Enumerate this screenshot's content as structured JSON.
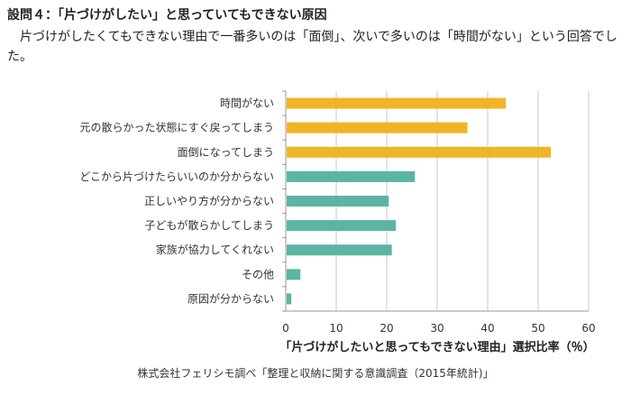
{
  "header": {
    "title": "設問４：「片づけがしたい」と思っていてもできない原因",
    "description": "片づけがしたくてもできない理由で一番多いのは「面倒」、次いで多いのは「時間がない」という回答でした。"
  },
  "chart_data": {
    "type": "bar",
    "orientation": "horizontal",
    "categories": [
      "時間がない",
      "元の散らかった状態にすぐ戻ってしまう",
      "面倒になってしまう",
      "どこから片づけたらいいのか分からない",
      "正しいやり方が分からない",
      "子どもが散らかしてしまう",
      "家族が協力してくれない",
      "その他",
      "原因が分からない"
    ],
    "values": [
      43.6,
      36.0,
      52.5,
      25.6,
      20.4,
      21.8,
      21.0,
      2.9,
      1.1
    ],
    "colors": [
      "#F0B429",
      "#F0B429",
      "#F0B429",
      "#5BB5A2",
      "#5BB5A2",
      "#5BB5A2",
      "#5BB5A2",
      "#5BB5A2",
      "#5BB5A2"
    ],
    "xlabel": "「片づけがしたいと思ってもできない理由」選択比率（％）",
    "ylabel": "",
    "xlim": [
      0,
      60
    ],
    "xticks": [
      "0",
      "10",
      "20",
      "30",
      "40",
      "50",
      "60"
    ],
    "grid": true
  },
  "source": "株式会社フェリシモ調べ「整理と収納に関する意識調査（2015年統計)」"
}
